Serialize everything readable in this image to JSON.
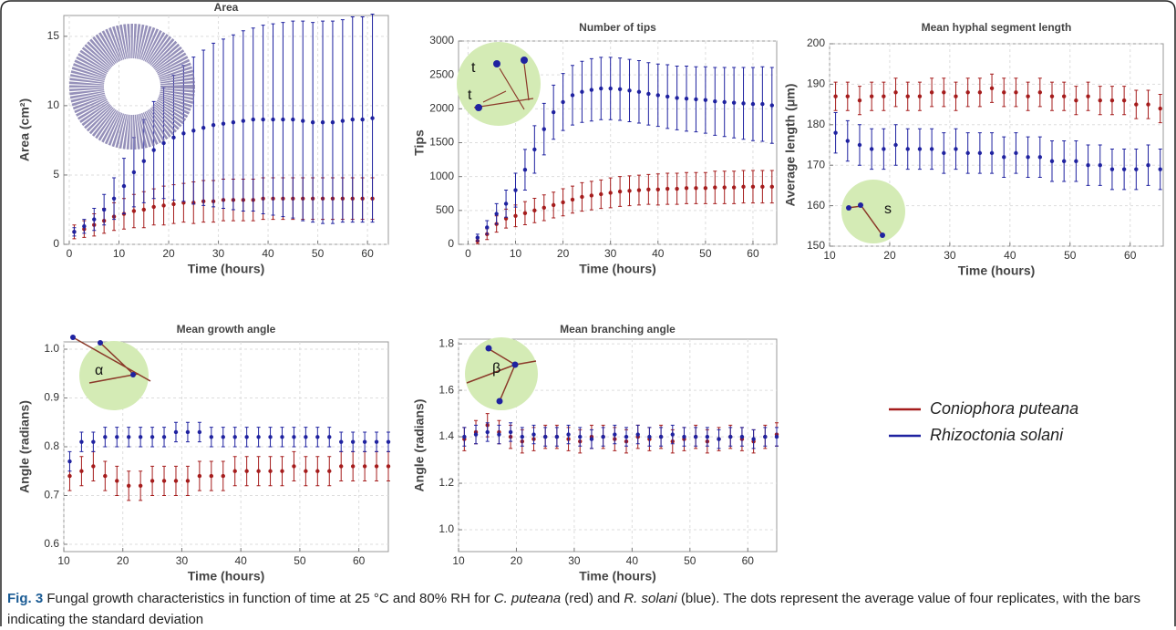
{
  "chart_data": [
    {
      "type": "errorbar",
      "title": "Area",
      "xlabel": "Time (hours)",
      "ylabel": "Area (cm²)",
      "x": [
        1,
        3,
        5,
        7,
        9,
        11,
        13,
        15,
        17,
        19,
        21,
        23,
        25,
        27,
        29,
        31,
        33,
        35,
        37,
        39,
        41,
        43,
        45,
        47,
        49,
        51,
        53,
        55,
        57,
        59,
        61
      ],
      "xlim": [
        -1.1,
        64.2
      ],
      "xticks": [
        0,
        10,
        20,
        30,
        40,
        50,
        60
      ],
      "ylim": [
        0,
        16.5
      ],
      "yticks": [
        0,
        5,
        10,
        15
      ],
      "grid": true,
      "series": [
        {
          "name": "Coniophora puteana",
          "color": "#a51c1c",
          "values": [
            0.9,
            1.1,
            1.4,
            1.7,
            2.0,
            2.2,
            2.4,
            2.5,
            2.7,
            2.8,
            2.9,
            3.0,
            3.0,
            3.1,
            3.1,
            3.2,
            3.2,
            3.2,
            3.2,
            3.3,
            3.3,
            3.3,
            3.3,
            3.3,
            3.3,
            3.3,
            3.3,
            3.3,
            3.3,
            3.3,
            3.3
          ],
          "errors": [
            0.5,
            0.6,
            0.8,
            0.9,
            1.0,
            1.1,
            1.2,
            1.3,
            1.3,
            1.4,
            1.4,
            1.4,
            1.5,
            1.5,
            1.5,
            1.5,
            1.5,
            1.5,
            1.5,
            1.5,
            1.5,
            1.5,
            1.5,
            1.5,
            1.5,
            1.5,
            1.5,
            1.5,
            1.5,
            1.5,
            1.5
          ]
        },
        {
          "name": "Rhizoctonia solani",
          "color": "#1f22a0",
          "values": [
            0.9,
            1.3,
            1.8,
            2.5,
            3.3,
            4.2,
            5.2,
            6.0,
            6.8,
            7.3,
            7.7,
            8.0,
            8.2,
            8.4,
            8.6,
            8.7,
            8.8,
            8.9,
            9.0,
            9.0,
            9.0,
            9.0,
            9.0,
            8.9,
            8.8,
            8.8,
            8.8,
            8.9,
            9.0,
            9.0,
            9.1
          ],
          "errors": [
            0.3,
            0.5,
            0.8,
            1.1,
            1.5,
            2.0,
            2.5,
            3.0,
            3.5,
            4.0,
            4.5,
            4.9,
            5.3,
            5.6,
            5.9,
            6.1,
            6.3,
            6.5,
            6.6,
            6.8,
            6.9,
            7.0,
            7.1,
            7.2,
            7.2,
            7.3,
            7.3,
            7.3,
            7.4,
            7.4,
            7.5
          ]
        }
      ]
    },
    {
      "type": "errorbar",
      "title": "Number of tips",
      "xlabel": "Time (hours)",
      "ylabel": "Tips",
      "annotations": [
        "t",
        "t"
      ],
      "x": [
        2,
        4,
        6,
        8,
        10,
        12,
        14,
        16,
        18,
        20,
        22,
        24,
        26,
        28,
        30,
        32,
        34,
        36,
        38,
        40,
        42,
        44,
        46,
        48,
        50,
        52,
        54,
        56,
        58,
        60,
        62,
        64
      ],
      "xlim": [
        -2,
        65
      ],
      "xticks": [
        0,
        10,
        20,
        30,
        40,
        50,
        60
      ],
      "ylim": [
        0,
        3000
      ],
      "yticks": [
        0,
        500,
        1000,
        1500,
        2000,
        2500,
        3000
      ],
      "grid": true,
      "series": [
        {
          "name": "Coniophora puteana",
          "color": "#a51c1c",
          "values": [
            50,
            150,
            300,
            380,
            420,
            460,
            500,
            540,
            580,
            620,
            660,
            700,
            720,
            740,
            760,
            780,
            790,
            800,
            810,
            810,
            820,
            820,
            830,
            830,
            830,
            840,
            840,
            840,
            850,
            850,
            850,
            850
          ],
          "errors": [
            40,
            80,
            120,
            140,
            160,
            170,
            180,
            190,
            190,
            200,
            200,
            210,
            210,
            210,
            220,
            220,
            220,
            220,
            220,
            230,
            230,
            230,
            230,
            230,
            230,
            240,
            240,
            240,
            240,
            240,
            240,
            240
          ]
        },
        {
          "name": "Rhizoctonia solani",
          "color": "#1f22a0",
          "values": [
            100,
            250,
            450,
            600,
            800,
            1100,
            1400,
            1700,
            1950,
            2100,
            2200,
            2250,
            2280,
            2300,
            2300,
            2290,
            2270,
            2250,
            2220,
            2200,
            2180,
            2160,
            2150,
            2140,
            2130,
            2110,
            2100,
            2090,
            2080,
            2070,
            2070,
            2050
          ],
          "errors": [
            50,
            100,
            150,
            200,
            250,
            300,
            350,
            380,
            400,
            420,
            440,
            450,
            460,
            460,
            460,
            460,
            460,
            460,
            460,
            460,
            470,
            470,
            480,
            480,
            490,
            500,
            510,
            520,
            530,
            540,
            550,
            560
          ]
        }
      ]
    },
    {
      "type": "errorbar",
      "title": "Mean hyphal segment length",
      "xlabel": "Time (hours)",
      "ylabel": "Average length (μm)",
      "annotations": [
        "s"
      ],
      "x": [
        11,
        13,
        15,
        17,
        19,
        21,
        23,
        25,
        27,
        29,
        31,
        33,
        35,
        37,
        39,
        41,
        43,
        45,
        47,
        49,
        51,
        53,
        55,
        57,
        59,
        61,
        63,
        65
      ],
      "xlim": [
        10,
        65.5
      ],
      "xticks": [
        10,
        20,
        30,
        40,
        50,
        60
      ],
      "ylim": [
        150,
        200
      ],
      "yticks": [
        150,
        160,
        170,
        180,
        190,
        200
      ],
      "grid": true,
      "series": [
        {
          "name": "Coniophora puteana",
          "color": "#a51c1c",
          "values": [
            187,
            187,
            186,
            187,
            187,
            188,
            187,
            187,
            188,
            188,
            187,
            188,
            188,
            189,
            188,
            188,
            187,
            188,
            187,
            187,
            186,
            187,
            186,
            186,
            186,
            185,
            185,
            184
          ],
          "errors": [
            3.5,
            3.5,
            3.5,
            3.5,
            3.5,
            3.5,
            3.5,
            3.5,
            3.5,
            3.5,
            3.5,
            3.5,
            3.5,
            3.5,
            3.5,
            3.5,
            3.5,
            3.5,
            3.5,
            3.5,
            3.5,
            3.5,
            3.5,
            3.5,
            3.5,
            3.5,
            3.5,
            3.5
          ]
        },
        {
          "name": "Rhizoctonia solani",
          "color": "#1f22a0",
          "values": [
            178,
            176,
            175,
            174,
            174,
            175,
            174,
            174,
            174,
            173,
            174,
            173,
            173,
            173,
            172,
            173,
            172,
            172,
            171,
            171,
            171,
            170,
            170,
            169,
            169,
            169,
            170,
            169
          ],
          "errors": [
            5,
            5,
            5,
            5,
            5,
            5,
            5,
            5,
            5,
            5,
            5,
            5,
            5,
            5,
            5,
            5,
            5,
            5,
            5,
            5,
            5,
            5,
            5,
            5,
            5,
            5,
            5,
            5
          ]
        }
      ]
    },
    {
      "type": "errorbar",
      "title": "Mean growth angle",
      "xlabel": "Time (hours)",
      "ylabel": "Angle (radians)",
      "annotations": [
        "α"
      ],
      "x": [
        11,
        13,
        15,
        17,
        19,
        21,
        23,
        25,
        27,
        29,
        31,
        33,
        35,
        37,
        39,
        41,
        43,
        45,
        47,
        49,
        51,
        53,
        55,
        57,
        59,
        61,
        63,
        65
      ],
      "xlim": [
        10,
        65
      ],
      "xticks": [
        10,
        20,
        30,
        40,
        50,
        60
      ],
      "ylim": [
        0.585,
        1.015
      ],
      "yticks": [
        0.6,
        0.7,
        0.8,
        0.9,
        {
          "value": 1,
          "label": "1.0"
        }
      ],
      "grid": true,
      "series": [
        {
          "name": "Coniophora puteana",
          "color": "#a51c1c",
          "values": [
            0.74,
            0.75,
            0.76,
            0.74,
            0.73,
            0.72,
            0.72,
            0.73,
            0.73,
            0.73,
            0.73,
            0.74,
            0.74,
            0.74,
            0.75,
            0.75,
            0.75,
            0.75,
            0.75,
            0.76,
            0.75,
            0.75,
            0.75,
            0.76,
            0.76,
            0.76,
            0.76,
            0.76
          ],
          "errors": [
            0.03,
            0.03,
            0.03,
            0.03,
            0.03,
            0.03,
            0.03,
            0.03,
            0.03,
            0.03,
            0.03,
            0.03,
            0.03,
            0.03,
            0.03,
            0.03,
            0.03,
            0.03,
            0.03,
            0.03,
            0.03,
            0.03,
            0.03,
            0.03,
            0.03,
            0.03,
            0.03,
            0.03
          ]
        },
        {
          "name": "Rhizoctonia solani",
          "color": "#1f22a0",
          "values": [
            0.77,
            0.81,
            0.81,
            0.82,
            0.82,
            0.82,
            0.82,
            0.82,
            0.82,
            0.83,
            0.83,
            0.83,
            0.82,
            0.82,
            0.82,
            0.82,
            0.82,
            0.82,
            0.82,
            0.82,
            0.82,
            0.82,
            0.82,
            0.81,
            0.81,
            0.81,
            0.81,
            0.81
          ],
          "errors": [
            0.02,
            0.02,
            0.02,
            0.02,
            0.02,
            0.02,
            0.02,
            0.02,
            0.02,
            0.02,
            0.02,
            0.02,
            0.02,
            0.02,
            0.02,
            0.02,
            0.02,
            0.02,
            0.02,
            0.02,
            0.02,
            0.02,
            0.02,
            0.02,
            0.02,
            0.02,
            0.02,
            0.02
          ]
        }
      ]
    },
    {
      "type": "errorbar",
      "title": "Mean branching angle",
      "xlabel": "Time (hours)",
      "ylabel": "Angle (radians)",
      "annotations": [
        "β"
      ],
      "x": [
        11,
        13,
        15,
        17,
        19,
        21,
        23,
        25,
        27,
        29,
        31,
        33,
        35,
        37,
        39,
        41,
        43,
        45,
        47,
        49,
        51,
        53,
        55,
        57,
        59,
        61,
        63,
        65
      ],
      "xlim": [
        10,
        65
      ],
      "xticks": [
        10,
        20,
        30,
        40,
        50,
        60
      ],
      "ylim": [
        0.906,
        1.82
      ],
      "yticks": [
        {
          "value": 1,
          "label": "1.0"
        },
        1.2,
        1.4,
        1.6,
        1.8
      ],
      "grid": true,
      "series": [
        {
          "name": "Coniophora puteana",
          "color": "#a51c1c",
          "values": [
            1.39,
            1.42,
            1.45,
            1.42,
            1.4,
            1.38,
            1.39,
            1.4,
            1.4,
            1.39,
            1.38,
            1.4,
            1.4,
            1.39,
            1.38,
            1.4,
            1.39,
            1.4,
            1.38,
            1.39,
            1.4,
            1.38,
            1.39,
            1.4,
            1.39,
            1.38,
            1.4,
            1.41
          ],
          "errors": [
            0.05,
            0.05,
            0.05,
            0.05,
            0.05,
            0.05,
            0.05,
            0.05,
            0.05,
            0.05,
            0.05,
            0.05,
            0.05,
            0.05,
            0.05,
            0.05,
            0.05,
            0.05,
            0.05,
            0.05,
            0.05,
            0.05,
            0.05,
            0.05,
            0.05,
            0.05,
            0.05,
            0.05
          ]
        },
        {
          "name": "Rhizoctonia solani",
          "color": "#1f22a0",
          "values": [
            1.4,
            1.41,
            1.42,
            1.41,
            1.42,
            1.4,
            1.41,
            1.4,
            1.4,
            1.41,
            1.4,
            1.39,
            1.4,
            1.41,
            1.4,
            1.41,
            1.4,
            1.4,
            1.41,
            1.4,
            1.4,
            1.4,
            1.39,
            1.4,
            1.4,
            1.39,
            1.4,
            1.4
          ],
          "errors": [
            0.04,
            0.04,
            0.04,
            0.04,
            0.04,
            0.04,
            0.04,
            0.04,
            0.04,
            0.04,
            0.04,
            0.04,
            0.04,
            0.04,
            0.04,
            0.04,
            0.04,
            0.04,
            0.04,
            0.04,
            0.04,
            0.04,
            0.04,
            0.04,
            0.04,
            0.04,
            0.04,
            0.04
          ]
        }
      ]
    }
  ],
  "caption": {
    "label": "Fig. 3",
    "parts": [
      "Fungal growth characteristics in function of time at 25 °C and 80% RH for ",
      "C. puteana",
      " (red) and ",
      "R. solani",
      " (blue). The dots represent the average value of four replicates, with the bars indicating the standard deviation"
    ]
  }
}
